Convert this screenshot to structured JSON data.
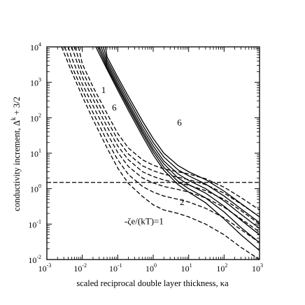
{
  "chart_data": {
    "type": "line",
    "title": "",
    "xlabel": "scaled reciprocal double layer thickness, κa",
    "ylabel_text": "conductivity increment, Δ",
    "ylabel_sup": "k",
    "ylabel_tail": " + 3/2",
    "x_scale": "log",
    "y_scale": "log",
    "xlim": [
      0.001,
      1000
    ],
    "ylim": [
      0.01,
      10000
    ],
    "x_ticks": [
      {
        "base": "10",
        "exp": "-3",
        "value": 0.001
      },
      {
        "base": "10",
        "exp": "-2",
        "value": 0.01
      },
      {
        "base": "10",
        "exp": "-1",
        "value": 0.1
      },
      {
        "base": "10",
        "exp": "0",
        "value": 1
      },
      {
        "base": "10",
        "exp": "1",
        "value": 10
      },
      {
        "base": "10",
        "exp": "2",
        "value": 100
      },
      {
        "base": "10",
        "exp": "3",
        "value": 1000
      }
    ],
    "y_ticks": [
      {
        "base": "10",
        "exp": "-2",
        "value": 0.01
      },
      {
        "base": "10",
        "exp": "-1",
        "value": 0.1
      },
      {
        "base": "10",
        "exp": "0",
        "value": 1
      },
      {
        "base": "10",
        "exp": "1",
        "value": 10
      },
      {
        "base": "10",
        "exp": "2",
        "value": 100
      },
      {
        "base": "10",
        "exp": "3",
        "value": 1000
      },
      {
        "base": "10",
        "exp": "4",
        "value": 10000
      }
    ],
    "grid": false,
    "reference_line": {
      "y": 1.5,
      "style": "dashed"
    },
    "series": [
      {
        "style": "solid",
        "x": [
          0.024,
          0.05,
          0.1,
          0.2,
          0.5,
          1,
          2,
          5,
          10,
          30,
          100,
          300,
          1000
        ],
        "y": [
          10000,
          2300,
          600,
          160,
          30,
          9,
          3.3,
          1.3,
          0.8,
          0.4,
          0.14,
          0.05,
          0.018
        ]
      },
      {
        "style": "solid",
        "x": [
          0.027,
          0.05,
          0.1,
          0.2,
          0.5,
          1,
          2,
          5,
          10,
          30,
          100,
          300,
          1000
        ],
        "y": [
          10000,
          2600,
          700,
          190,
          36,
          11,
          4,
          1.6,
          1,
          0.55,
          0.22,
          0.08,
          0.03
        ]
      },
      {
        "style": "solid",
        "x": [
          0.03,
          0.05,
          0.1,
          0.2,
          0.5,
          1,
          2,
          5,
          10,
          30,
          100,
          300,
          1000
        ],
        "y": [
          10000,
          3000,
          800,
          220,
          42,
          13,
          5,
          2,
          1.3,
          0.75,
          0.32,
          0.13,
          0.05
        ]
      },
      {
        "style": "solid",
        "x": [
          0.034,
          0.05,
          0.1,
          0.2,
          0.5,
          1,
          2,
          5,
          10,
          30,
          100,
          300,
          1000
        ],
        "y": [
          10000,
          3500,
          950,
          260,
          50,
          16,
          6,
          2.6,
          1.7,
          1,
          0.45,
          0.19,
          0.075
        ]
      },
      {
        "style": "solid",
        "x": [
          0.039,
          0.05,
          0.1,
          0.2,
          0.5,
          1,
          2,
          5,
          10,
          30,
          100,
          300,
          1000
        ],
        "y": [
          10000,
          4200,
          1150,
          320,
          62,
          20,
          7.8,
          3.4,
          2.3,
          1.35,
          0.62,
          0.27,
          0.11
        ]
      },
      {
        "style": "solid",
        "x": [
          0.045,
          0.05,
          0.1,
          0.2,
          0.5,
          1,
          2,
          5,
          10,
          30,
          100,
          300,
          1000
        ],
        "y": [
          10000,
          5200,
          1400,
          400,
          80,
          26,
          10,
          4.5,
          3,
          1.8,
          0.85,
          0.38,
          0.16
        ]
      },
      {
        "style": "dashed",
        "x": [
          0.0026,
          0.005,
          0.01,
          0.02,
          0.05,
          0.1,
          0.2,
          0.5,
          1,
          2,
          5,
          10,
          30,
          100,
          300,
          1000
        ],
        "y": [
          10000,
          2000,
          400,
          90,
          14,
          3.8,
          1.4,
          0.6,
          0.35,
          0.25,
          0.2,
          0.16,
          0.1,
          0.05,
          0.022,
          0.01
        ]
      },
      {
        "style": "dashed",
        "x": [
          0.0032,
          0.005,
          0.01,
          0.02,
          0.05,
          0.1,
          0.2,
          0.5,
          1,
          2,
          5,
          10,
          30,
          100,
          300,
          1000
        ],
        "y": [
          10000,
          2900,
          600,
          140,
          22,
          6.5,
          2.5,
          1.15,
          0.8,
          0.62,
          0.5,
          0.42,
          0.28,
          0.15,
          0.07,
          0.03
        ]
      },
      {
        "style": "dashed",
        "x": [
          0.004,
          0.005,
          0.01,
          0.02,
          0.05,
          0.1,
          0.2,
          0.5,
          1,
          2,
          5,
          10,
          30,
          100,
          300,
          1000
        ],
        "y": [
          10000,
          5000,
          900,
          220,
          36,
          10.5,
          4.2,
          2,
          1.45,
          1.15,
          0.95,
          0.8,
          0.55,
          0.3,
          0.14,
          0.06
        ]
      },
      {
        "style": "dashed",
        "x": [
          0.005,
          0.01,
          0.02,
          0.05,
          0.1,
          0.2,
          0.5,
          1,
          2,
          5,
          10,
          30,
          100,
          300,
          1000
        ],
        "y": [
          10000,
          1400,
          340,
          56,
          16,
          6.5,
          3,
          2.2,
          1.75,
          1.45,
          1.25,
          0.88,
          0.5,
          0.24,
          0.1
        ]
      },
      {
        "style": "dashed",
        "x": [
          0.0062,
          0.01,
          0.02,
          0.05,
          0.1,
          0.2,
          0.5,
          1,
          2,
          5,
          10,
          30,
          100,
          300,
          1000
        ],
        "y": [
          10000,
          2100,
          500,
          85,
          24,
          9.5,
          4.4,
          3.2,
          2.55,
          2.1,
          1.8,
          1.3,
          0.75,
          0.37,
          0.16
        ]
      },
      {
        "style": "dashed",
        "x": [
          0.0078,
          0.01,
          0.02,
          0.05,
          0.1,
          0.2,
          0.5,
          1,
          2,
          5,
          10,
          30,
          100,
          300,
          1000
        ],
        "y": [
          10000,
          3300,
          750,
          130,
          36,
          14,
          6.5,
          4.6,
          3.6,
          3,
          2.6,
          1.9,
          1.1,
          0.56,
          0.25
        ]
      }
    ],
    "annotations": [
      {
        "text": "1",
        "x": 0.04,
        "y": 500
      },
      {
        "text": "6",
        "x": 0.08,
        "y": 160
      },
      {
        "text": "6",
        "x": 5.5,
        "y": 60
      },
      {
        "text": "2",
        "x": 6.5,
        "y": 0.35
      },
      {
        "text": "-ζe/(kT)=1",
        "x": 0.55,
        "y": 0.1
      }
    ]
  }
}
